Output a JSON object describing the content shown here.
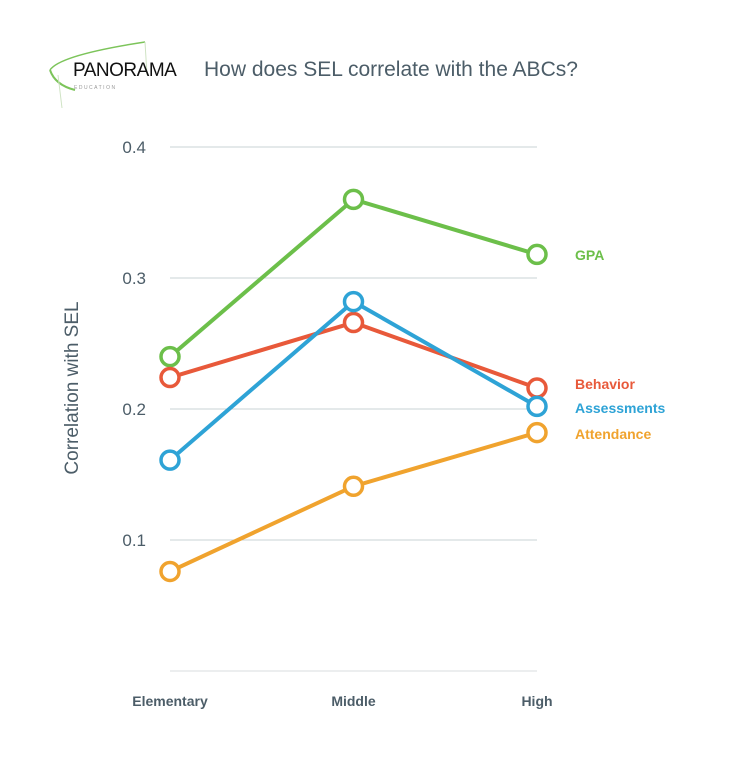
{
  "logo": {
    "name": "PANORAMA",
    "sub": "EDUCATION"
  },
  "chart_data": {
    "type": "line",
    "title": "How does SEL correlate with the ABCs?",
    "xlabel": "",
    "ylabel": "Correlation with SEL",
    "categories": [
      "Elementary",
      "Middle",
      "High"
    ],
    "yticks": [
      "0.1",
      "0.2",
      "0.3",
      "0.4"
    ],
    "ylim": [
      0,
      0.4
    ],
    "grid": true,
    "legend_placement": "right (end-of-line labels)",
    "series": [
      {
        "name": "GPA",
        "color": "#6cbf4a",
        "values": [
          0.24,
          0.36,
          0.318
        ]
      },
      {
        "name": "Behavior",
        "color": "#e8593a",
        "values": [
          0.224,
          0.266,
          0.216
        ]
      },
      {
        "name": "Assessments",
        "color": "#2ea3d6",
        "values": [
          0.161,
          0.282,
          0.202
        ]
      },
      {
        "name": "Attendance",
        "color": "#f0a32e",
        "values": [
          0.076,
          0.141,
          0.182
        ]
      }
    ]
  }
}
